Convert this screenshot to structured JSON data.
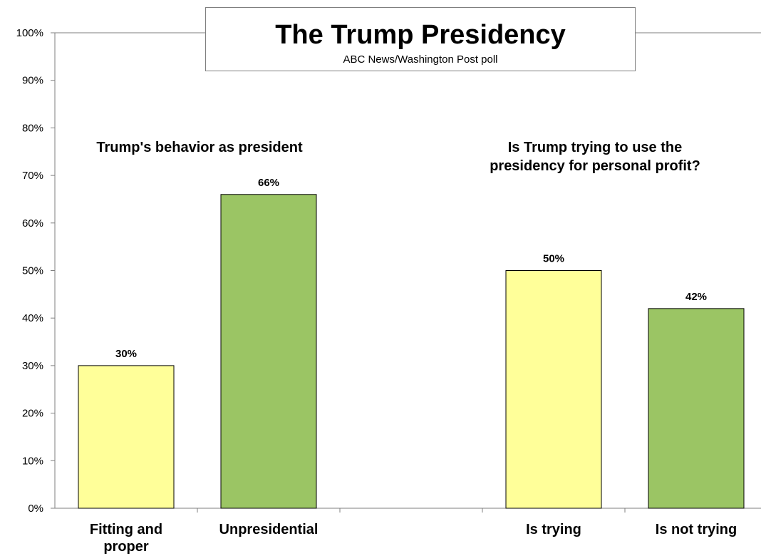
{
  "chart_data": {
    "type": "bar",
    "title": "The Trump Presidency",
    "subtitle": "ABC News/Washington Post poll",
    "ylim": [
      0,
      100
    ],
    "yticks": [
      "0%",
      "10%",
      "20%",
      "30%",
      "40%",
      "50%",
      "60%",
      "70%",
      "80%",
      "90%",
      "100%"
    ],
    "grid": false,
    "groups": [
      {
        "heading_lines": [
          "Trump's behavior as president"
        ],
        "categories": [
          {
            "label_lines": [
              "Fitting and",
              "proper"
            ],
            "value": 30,
            "data_label": "30%",
            "color": "#ffff99"
          },
          {
            "label_lines": [
              "Unpresidential"
            ],
            "value": 66,
            "data_label": "66%",
            "color": "#9bc564"
          }
        ]
      },
      {
        "heading_lines": [
          "Is Trump trying to use the",
          "presidency for personal profit?"
        ],
        "categories": [
          {
            "label_lines": [
              "Is trying"
            ],
            "value": 50,
            "data_label": "50%",
            "color": "#ffff99"
          },
          {
            "label_lines": [
              "Is not trying"
            ],
            "value": 42,
            "data_label": "42%",
            "color": "#9bc564"
          }
        ]
      }
    ],
    "colors": {
      "axis": "#7f7f7f",
      "bar_outline": "#000000"
    }
  }
}
